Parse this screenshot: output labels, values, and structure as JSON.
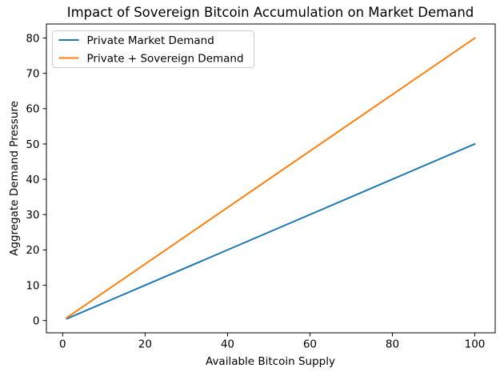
{
  "figure": {
    "background": "#ffffff"
  },
  "chart_data": {
    "type": "line",
    "title": "Impact of Sovereign Bitcoin Accumulation on Market Demand",
    "xlabel": "Available Bitcoin Supply",
    "ylabel": "Aggregate Demand Pressure",
    "x": [
      1,
      20,
      40,
      60,
      80,
      100
    ],
    "series": [
      {
        "name": "Private Market Demand",
        "color": "#1f77b4",
        "values": [
          0.5,
          10,
          20,
          30,
          40,
          50
        ]
      },
      {
        "name": "Private + Sovereign Demand",
        "color": "#ff7f0e",
        "values": [
          0.8,
          16,
          32,
          48,
          64,
          80
        ]
      }
    ],
    "xticks": [
      0,
      20,
      40,
      60,
      80,
      100
    ],
    "yticks": [
      0,
      10,
      20,
      30,
      40,
      50,
      60,
      70,
      80
    ],
    "xlim": [
      -3.95,
      104.95
    ],
    "ylim": [
      -3.475,
      83.975
    ],
    "grid": false,
    "legend": {
      "position": "upper left",
      "border_color": "#cccccc",
      "background": "#ffffff"
    },
    "axis_color": "#000000",
    "line_width": 2
  }
}
